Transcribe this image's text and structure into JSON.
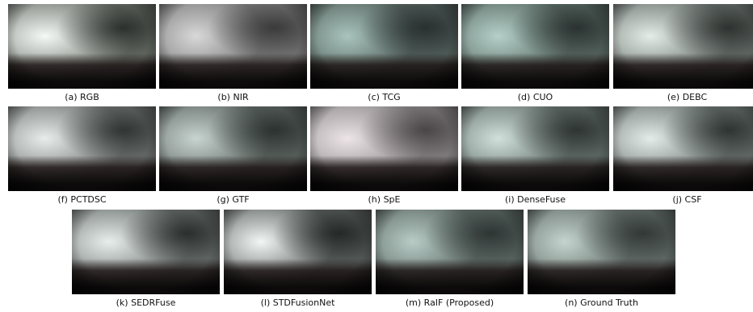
{
  "figure": {
    "captions": [
      "(a) RGB",
      "(b) NIR",
      "(c) TCG",
      "(d) CUO",
      "(e) DEBC",
      "(f) PCTDSC",
      "(g) GTF",
      "(h) SpE",
      "(i) DenseFuse",
      "(j) CSF",
      "(k) SEDRFuse",
      "(l) STDFusionNet",
      "(m) RaIF (Proposed)",
      "(n) Ground Truth"
    ]
  }
}
